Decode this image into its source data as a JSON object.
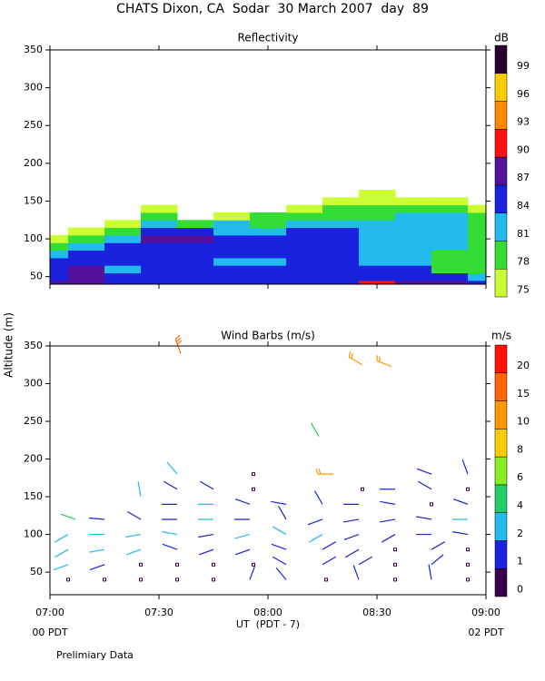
{
  "title": "CHATS Dixon, CA  Sodar  30 March 2007  day  89",
  "footer": "Prelimiary Data",
  "chart_data": [
    {
      "type": "contour",
      "title": "Reflectivity",
      "xlim": [
        420,
        540
      ],
      "ylim": [
        40,
        350
      ],
      "yticks": [
        50,
        100,
        150,
        200,
        250,
        300,
        350
      ],
      "x": [
        420,
        430,
        440,
        450,
        460,
        470,
        480,
        490,
        500,
        510,
        520,
        530,
        540
      ],
      "heights": [
        40,
        50,
        60,
        70,
        80,
        90,
        100,
        110,
        120,
        130,
        140,
        150,
        160
      ],
      "z": [
        [
          87,
          87,
          85,
          85,
          84,
          84,
          84,
          85,
          86,
          90,
          87,
          87,
          86
        ],
        [
          85,
          88,
          84,
          84,
          84,
          84,
          85,
          84,
          85,
          86,
          85,
          84,
          83
        ],
        [
          84,
          87,
          82,
          85,
          85,
          84,
          84,
          84,
          84,
          84,
          84,
          80,
          79
        ],
        [
          84,
          85,
          84,
          84,
          85,
          82,
          82,
          84,
          84,
          82,
          82,
          79,
          78
        ],
        [
          81,
          84,
          85,
          85,
          84,
          84,
          84,
          84,
          84,
          82,
          81,
          80,
          78
        ],
        [
          78,
          82,
          84,
          86,
          85,
          85,
          84,
          84,
          84,
          82,
          81,
          82,
          80
        ],
        [
          76,
          79,
          81,
          87,
          87,
          84,
          84,
          84,
          84,
          82,
          82,
          82,
          79
        ],
        [
          72,
          76,
          79,
          84,
          84,
          83,
          83,
          85,
          84,
          83,
          82,
          82,
          79
        ],
        [
          70,
          72,
          76,
          81,
          80,
          81,
          80,
          82,
          82,
          82,
          82,
          82,
          80
        ],
        [
          70,
          70,
          72,
          78,
          72,
          77,
          78,
          79,
          80,
          80,
          81,
          81,
          78
        ],
        [
          70,
          70,
          70,
          76,
          70,
          72,
          72,
          76,
          78,
          79,
          79,
          78,
          76
        ],
        [
          70,
          70,
          70,
          72,
          70,
          70,
          70,
          72,
          76,
          77,
          76,
          75,
          72
        ],
        [
          70,
          70,
          70,
          70,
          70,
          70,
          70,
          70,
          72,
          75,
          72,
          72,
          70
        ]
      ],
      "colorbar": {
        "label": "dB",
        "levels": [
          75,
          78,
          81,
          84,
          87,
          90,
          93,
          96,
          99
        ],
        "colors": [
          "#ccff33",
          "#33dd33",
          "#22bbee",
          "#1a22dd",
          "#551199",
          "#ff1111",
          "#ff8800",
          "#ffcc00",
          "#2a0030"
        ]
      }
    },
    {
      "type": "barbs",
      "title": "Wind Barbs (m/s)",
      "ylabel": "Altitude (m)",
      "xlabel": "UT  (PDT - 7)",
      "x_sublabels": [
        "00 PDT",
        "02 PDT"
      ],
      "xlim": [
        420,
        540
      ],
      "ylim": [
        20,
        350
      ],
      "yticks": [
        50,
        100,
        150,
        200,
        250,
        300,
        350
      ],
      "xticks": [
        {
          "value": 420,
          "label": "07:00"
        },
        {
          "value": 450,
          "label": "07:30"
        },
        {
          "value": 480,
          "label": "08:00"
        },
        {
          "value": 510,
          "label": "08:30"
        },
        {
          "value": 540,
          "label": "09:00"
        }
      ],
      "barbs": [
        {
          "time": 425,
          "height": 40,
          "speed": 0,
          "direction": null
        },
        {
          "time": 425,
          "height": 60,
          "speed": 2,
          "direction": 250
        },
        {
          "time": 425,
          "height": 80,
          "speed": 2.5,
          "direction": 240
        },
        {
          "time": 425,
          "height": 100,
          "speed": 2.5,
          "direction": 240
        },
        {
          "time": 427,
          "height": 120,
          "speed": 4.5,
          "direction": 290
        },
        {
          "time": 435,
          "height": 40,
          "speed": 0,
          "direction": null
        },
        {
          "time": 435,
          "height": 60,
          "speed": 1.5,
          "direction": 250
        },
        {
          "time": 435,
          "height": 80,
          "speed": 2.5,
          "direction": 260
        },
        {
          "time": 435,
          "height": 100,
          "speed": 2.5,
          "direction": 270
        },
        {
          "time": 435,
          "height": 120,
          "speed": 1.5,
          "direction": 275
        },
        {
          "time": 445,
          "height": 40,
          "speed": 0,
          "direction": null
        },
        {
          "time": 445,
          "height": 60,
          "speed": 0,
          "direction": null
        },
        {
          "time": 445,
          "height": 80,
          "speed": 2.5,
          "direction": 250
        },
        {
          "time": 445,
          "height": 100,
          "speed": 2.5,
          "direction": 260
        },
        {
          "time": 445,
          "height": 120,
          "speed": 1.5,
          "direction": 300
        },
        {
          "time": 445,
          "height": 150,
          "speed": 2.5,
          "direction": 350
        },
        {
          "time": 455,
          "height": 40,
          "speed": 0,
          "direction": null
        },
        {
          "time": 455,
          "height": 60,
          "speed": 0,
          "direction": null
        },
        {
          "time": 455,
          "height": 80,
          "speed": 1.5,
          "direction": 290
        },
        {
          "time": 455,
          "height": 100,
          "speed": 2,
          "direction": 280
        },
        {
          "time": 455,
          "height": 120,
          "speed": 1.5,
          "direction": 270
        },
        {
          "time": 455,
          "height": 140,
          "speed": 1.5,
          "direction": 270
        },
        {
          "time": 455,
          "height": 160,
          "speed": 1.5,
          "direction": 300
        },
        {
          "time": 455,
          "height": 180,
          "speed": 2.5,
          "direction": 320
        },
        {
          "time": 456,
          "height": 340,
          "speed": 15,
          "direction": 340
        },
        {
          "time": 465,
          "height": 40,
          "speed": 0,
          "direction": null
        },
        {
          "time": 465,
          "height": 60,
          "speed": 0,
          "direction": null
        },
        {
          "time": 465,
          "height": 80,
          "speed": 1.5,
          "direction": 250
        },
        {
          "time": 465,
          "height": 100,
          "speed": 1.5,
          "direction": 260
        },
        {
          "time": 465,
          "height": 120,
          "speed": 2.5,
          "direction": 270
        },
        {
          "time": 465,
          "height": 140,
          "speed": 2.5,
          "direction": 270
        },
        {
          "time": 465,
          "height": 160,
          "speed": 1.5,
          "direction": 300
        },
        {
          "time": 475,
          "height": 40,
          "speed": 1.5,
          "direction": 20
        },
        {
          "time": 476,
          "height": 60,
          "speed": 0,
          "direction": null
        },
        {
          "time": 475,
          "height": 80,
          "speed": 1.5,
          "direction": 250
        },
        {
          "time": 475,
          "height": 100,
          "speed": 2.5,
          "direction": 255
        },
        {
          "time": 475,
          "height": 120,
          "speed": 1.5,
          "direction": 270
        },
        {
          "time": 475,
          "height": 140,
          "speed": 1.5,
          "direction": 290
        },
        {
          "time": 476,
          "height": 160,
          "speed": 0,
          "direction": null
        },
        {
          "time": 476,
          "height": 180,
          "speed": 0,
          "direction": null
        },
        {
          "time": 485,
          "height": 40,
          "speed": 1.5,
          "direction": 320
        },
        {
          "time": 485,
          "height": 60,
          "speed": 1.5,
          "direction": 300
        },
        {
          "time": 485,
          "height": 80,
          "speed": 1.5,
          "direction": 290
        },
        {
          "time": 485,
          "height": 100,
          "speed": 2.5,
          "direction": 300
        },
        {
          "time": 485,
          "height": 120,
          "speed": 1.5,
          "direction": 330
        },
        {
          "time": 485,
          "height": 140,
          "speed": 1.5,
          "direction": 280
        },
        {
          "time": 496,
          "height": 40,
          "speed": 0,
          "direction": null
        },
        {
          "time": 495,
          "height": 60,
          "speed": 1.5,
          "direction": 60
        },
        {
          "time": 495,
          "height": 80,
          "speed": 1.5,
          "direction": 60
        },
        {
          "time": 495,
          "height": 100,
          "speed": 2.5,
          "direction": 240
        },
        {
          "time": 495,
          "height": 120,
          "speed": 1.5,
          "direction": 250
        },
        {
          "time": 495,
          "height": 140,
          "speed": 1.5,
          "direction": 330
        },
        {
          "time": 498,
          "height": 180,
          "speed": 10,
          "direction": 270
        },
        {
          "time": 494,
          "height": 230,
          "speed": 4.5,
          "direction": 330
        },
        {
          "time": 505,
          "height": 40,
          "speed": 1.5,
          "direction": 340
        },
        {
          "time": 505,
          "height": 60,
          "speed": 1.5,
          "direction": 60
        },
        {
          "time": 505,
          "height": 80,
          "speed": 1.5,
          "direction": 240
        },
        {
          "time": 505,
          "height": 100,
          "speed": 1.5,
          "direction": 250
        },
        {
          "time": 505,
          "height": 120,
          "speed": 1.5,
          "direction": 260
        },
        {
          "time": 505,
          "height": 140,
          "speed": 1.5,
          "direction": 270
        },
        {
          "time": 506,
          "height": 160,
          "speed": 0,
          "direction": null
        },
        {
          "time": 506,
          "height": 325,
          "speed": 12,
          "direction": 300
        },
        {
          "time": 515,
          "height": 40,
          "speed": 0,
          "direction": null
        },
        {
          "time": 515,
          "height": 60,
          "speed": 0,
          "direction": null
        },
        {
          "time": 515,
          "height": 80,
          "speed": 0,
          "direction": null
        },
        {
          "time": 515,
          "height": 100,
          "speed": 1.5,
          "direction": 240
        },
        {
          "time": 515,
          "height": 120,
          "speed": 1.5,
          "direction": 260
        },
        {
          "time": 515,
          "height": 140,
          "speed": 1.5,
          "direction": 280
        },
        {
          "time": 515,
          "height": 160,
          "speed": 1.5,
          "direction": 270
        },
        {
          "time": 514,
          "height": 323,
          "speed": 12,
          "direction": 290
        },
        {
          "time": 525,
          "height": 40,
          "speed": 1.5,
          "direction": 350
        },
        {
          "time": 525,
          "height": 60,
          "speed": 1.5,
          "direction": 50
        },
        {
          "time": 525,
          "height": 80,
          "speed": 1.5,
          "direction": 60
        },
        {
          "time": 525,
          "height": 100,
          "speed": 1.5,
          "direction": 270
        },
        {
          "time": 525,
          "height": 120,
          "speed": 1.5,
          "direction": 280
        },
        {
          "time": 525,
          "height": 140,
          "speed": 0,
          "direction": null
        },
        {
          "time": 525,
          "height": 160,
          "speed": 1.5,
          "direction": 300
        },
        {
          "time": 525,
          "height": 180,
          "speed": 1.5,
          "direction": 290
        },
        {
          "time": 535,
          "height": 40,
          "speed": 0,
          "direction": null
        },
        {
          "time": 535,
          "height": 60,
          "speed": 0,
          "direction": null
        },
        {
          "time": 535,
          "height": 80,
          "speed": 0,
          "direction": null
        },
        {
          "time": 535,
          "height": 100,
          "speed": 1.5,
          "direction": 280
        },
        {
          "time": 535,
          "height": 120,
          "speed": 2.5,
          "direction": 270
        },
        {
          "time": 535,
          "height": 140,
          "speed": 1.5,
          "direction": 290
        },
        {
          "time": 535,
          "height": 160,
          "speed": 0,
          "direction": null
        },
        {
          "time": 535,
          "height": 180,
          "speed": 1.5,
          "direction": 340
        }
      ],
      "colorbar": {
        "label": "m/s",
        "levels": [
          0,
          1,
          2,
          4,
          6,
          8,
          10,
          15,
          20
        ],
        "colors": [
          "#3a0050",
          "#1a22dd",
          "#22bbee",
          "#22cc66",
          "#88ee22",
          "#ffcc00",
          "#ff9900",
          "#ff6600",
          "#ff1100"
        ]
      }
    }
  ]
}
